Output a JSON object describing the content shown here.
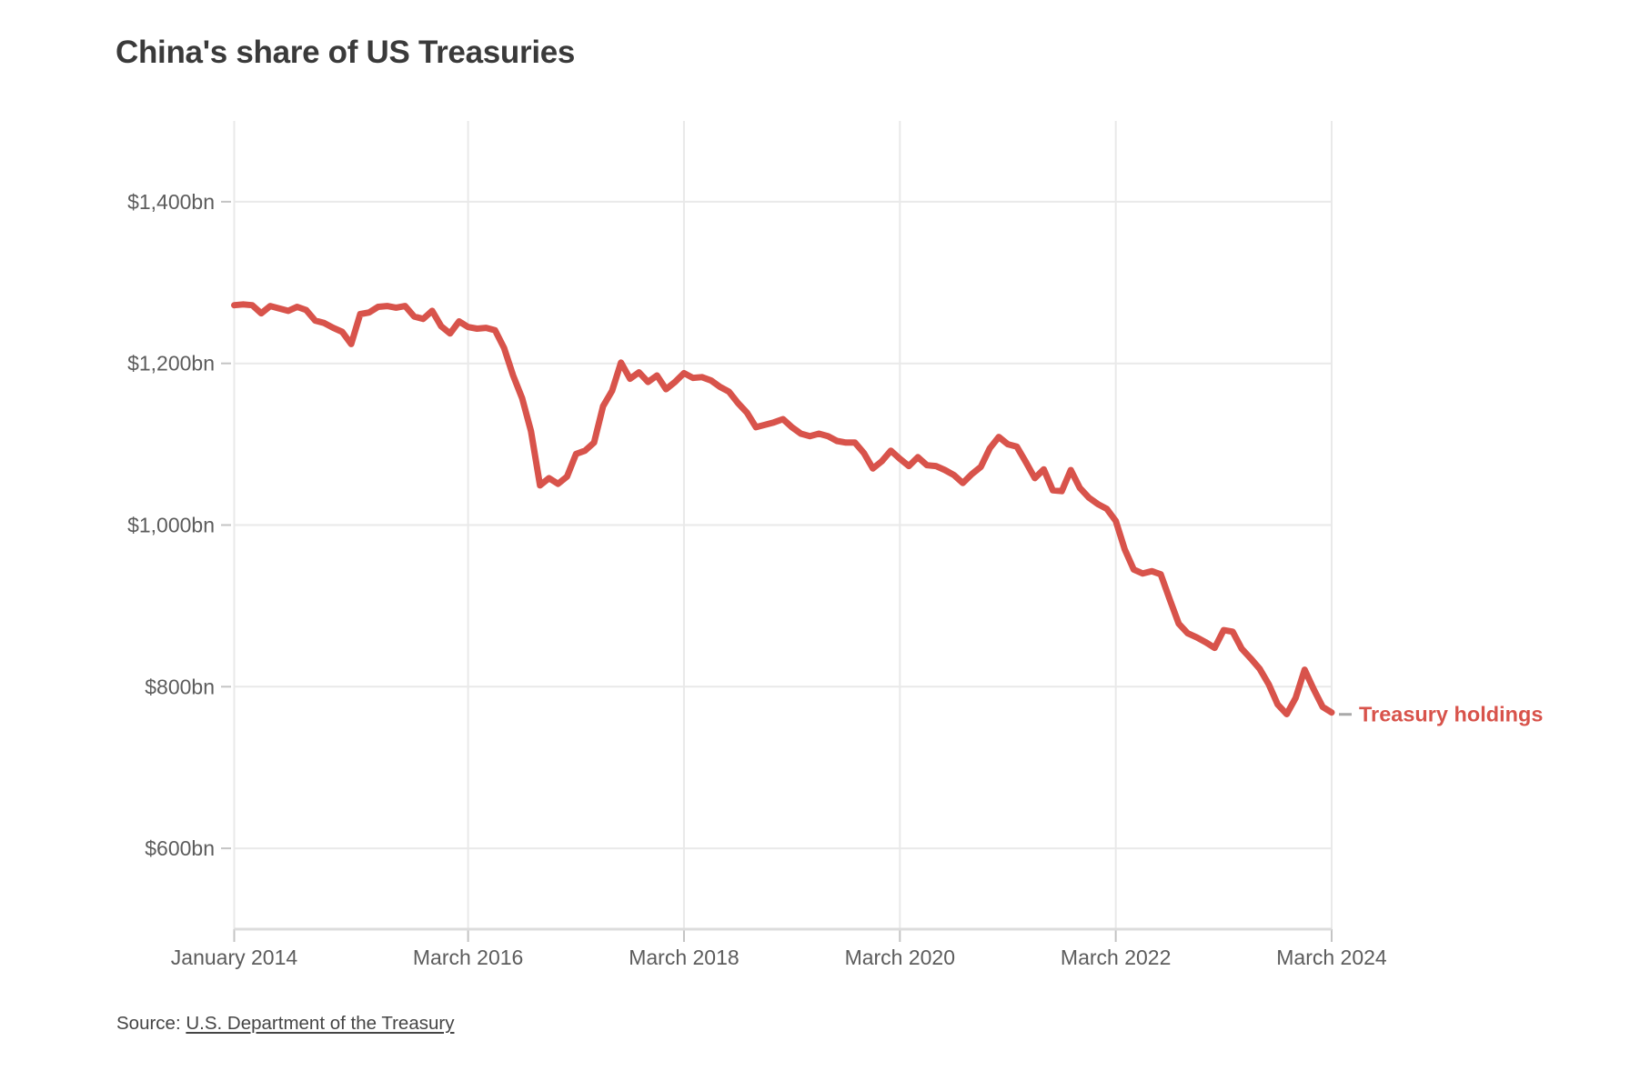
{
  "title": "China's share of US Treasuries",
  "legend": {
    "label": "Treasury holdings"
  },
  "source": {
    "prefix": "Source: ",
    "link_text": "U.S. Department of the Treasury"
  },
  "colors": {
    "background": "#ffffff",
    "line": "#d8534b",
    "legend_text": "#d8534b",
    "legend_dash": "#a9a9a9",
    "grid": "#e9e9e9",
    "axis_line": "#dcdcdc",
    "tick": "#c4c4c4",
    "title_text": "#3a3a3a",
    "axis_text": "#5c5c5c",
    "source_text": "#454545"
  },
  "chart_data": {
    "type": "line",
    "title": "China's share of US Treasuries",
    "unit": "US$ billions",
    "frequency": "monthly",
    "x_start": "2014-01",
    "x_end": "2024-03",
    "ylim": [
      500,
      1500
    ],
    "grid": true,
    "legend_position": "right-of-line-end",
    "y_axis": {
      "ticks": [
        {
          "label": "$1,400bn",
          "value": 1400
        },
        {
          "label": "$1,200bn",
          "value": 1200
        },
        {
          "label": "$1,000bn",
          "value": 1000
        },
        {
          "label": "$800bn",
          "value": 800
        },
        {
          "label": "$600bn",
          "value": 600
        }
      ]
    },
    "x_axis": {
      "ticks": [
        {
          "label": "January 2014",
          "month_index": 0
        },
        {
          "label": "March 2016",
          "month_index": 26
        },
        {
          "label": "March 2018",
          "month_index": 50
        },
        {
          "label": "March 2020",
          "month_index": 74
        },
        {
          "label": "March 2022",
          "month_index": 98
        },
        {
          "label": "March 2024",
          "month_index": 122
        }
      ]
    },
    "series": [
      {
        "name": "Treasury holdings",
        "values": [
          1272,
          1273,
          1272,
          1262,
          1271,
          1268,
          1265,
          1270,
          1266,
          1253,
          1250,
          1244,
          1239,
          1224,
          1261,
          1263,
          1270,
          1271,
          1269,
          1271,
          1258,
          1255,
          1265,
          1246,
          1237,
          1252,
          1245,
          1243,
          1244,
          1241,
          1219,
          1185,
          1157,
          1116,
          1049,
          1058,
          1051,
          1060,
          1088,
          1092,
          1102,
          1147,
          1166,
          1201,
          1181,
          1189,
          1177,
          1185,
          1168,
          1177,
          1188,
          1182,
          1183,
          1179,
          1171,
          1165,
          1151,
          1139,
          1121,
          1124,
          1127,
          1131,
          1121,
          1113,
          1110,
          1113,
          1110,
          1104,
          1102,
          1102,
          1089,
          1070,
          1079,
          1092,
          1082,
          1073,
          1084,
          1074,
          1073,
          1068,
          1062,
          1052,
          1063,
          1072,
          1095,
          1109,
          1100,
          1097,
          1078,
          1058,
          1069,
          1043,
          1042,
          1068,
          1046,
          1034,
          1026,
          1020,
          1005,
          970,
          945,
          940,
          943,
          939,
          908,
          878,
          866,
          861,
          855,
          848,
          870,
          868,
          847,
          835,
          822,
          803,
          778,
          766,
          786,
          821,
          797,
          775,
          768
        ]
      }
    ]
  }
}
